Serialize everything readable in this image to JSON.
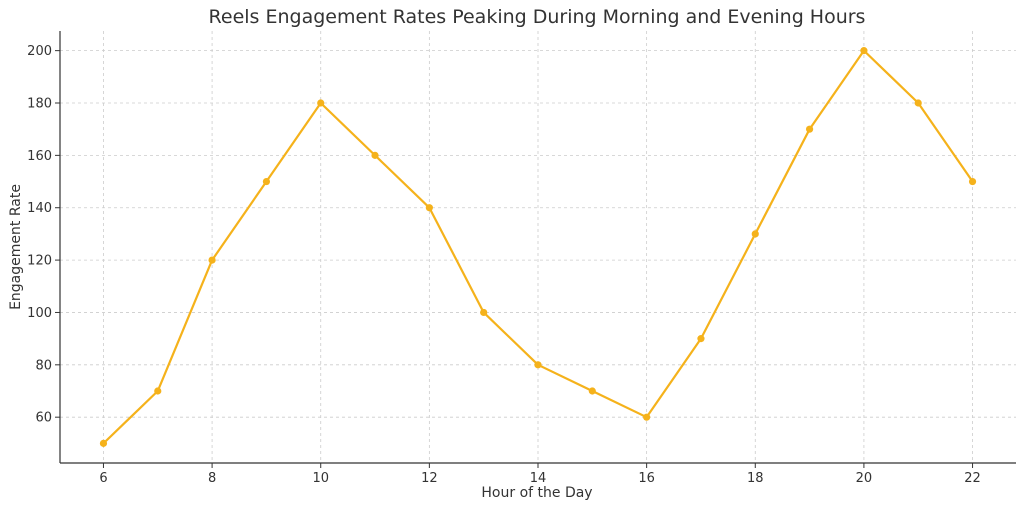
{
  "chart_data": {
    "type": "line",
    "title": "Reels Engagement Rates Peaking During Morning and Evening Hours",
    "xlabel": "Hour of the Day",
    "ylabel": "Engagement Rate",
    "x": [
      6,
      7,
      8,
      9,
      10,
      11,
      12,
      13,
      14,
      15,
      16,
      17,
      18,
      19,
      20,
      21,
      22
    ],
    "series": [
      {
        "values": [
          50,
          70,
          120,
          150,
          180,
          160,
          140,
          100,
          80,
          70,
          60,
          90,
          130,
          170,
          200,
          180,
          150
        ]
      }
    ],
    "xticks": [
      6,
      8,
      10,
      12,
      14,
      16,
      18,
      20,
      22
    ],
    "yticks": [
      60,
      80,
      100,
      120,
      140,
      160,
      180,
      200
    ],
    "xlim": [
      5.2,
      22.8
    ],
    "ylim": [
      42.5,
      207.5
    ],
    "grid": true,
    "line_color": "#f5b21b"
  }
}
